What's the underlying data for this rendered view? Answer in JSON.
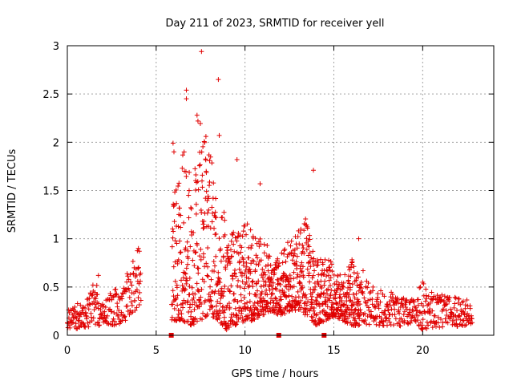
{
  "chart_data": {
    "type": "scatter",
    "title": "Day 211 of 2023, SRMTID for receiver yell",
    "xlabel": "GPS time / hours",
    "ylabel": "SRMTID / TECUs",
    "xlim": [
      0,
      24.0
    ],
    "ylim": [
      0,
      3
    ],
    "xticks": [
      0,
      5,
      10,
      15,
      20
    ],
    "xtick_labels": [
      "0",
      "5",
      "10",
      "15",
      "20"
    ],
    "yticks": [
      0,
      0.5,
      1,
      1.5,
      2,
      2.5,
      3
    ],
    "ytick_labels": [
      "0",
      "0.5",
      "1",
      "1.5",
      "2",
      "2.5",
      "3"
    ],
    "grid": true,
    "marker": "plus",
    "color": "#e00000",
    "envelope": {
      "description": "per-time-window min/max of the plotted SRMTID values",
      "x": [
        0.0,
        0.5,
        1.0,
        1.5,
        2.0,
        2.5,
        3.0,
        3.5,
        4.0,
        6.0,
        6.5,
        7.0,
        7.5,
        8.0,
        8.5,
        9.0,
        9.5,
        10.0,
        10.5,
        11.0,
        11.5,
        12.0,
        12.5,
        13.0,
        13.5,
        14.0,
        14.5,
        15.0,
        15.5,
        16.0,
        16.5,
        17.0,
        17.5,
        18.0,
        18.5,
        19.0,
        19.5,
        20.0,
        20.5,
        21.0,
        21.5,
        22.0,
        22.5,
        22.8
      ],
      "y_min": [
        0.08,
        0.06,
        0.08,
        0.1,
        0.1,
        0.1,
        0.12,
        0.18,
        0.3,
        0.15,
        0.15,
        0.1,
        0.15,
        0.2,
        0.15,
        0.05,
        0.1,
        0.15,
        0.15,
        0.2,
        0.25,
        0.2,
        0.25,
        0.25,
        0.2,
        0.1,
        0.15,
        0.2,
        0.15,
        0.1,
        0.1,
        0.1,
        0.1,
        0.1,
        0.1,
        0.08,
        0.1,
        0.05,
        0.08,
        0.08,
        0.1,
        0.08,
        0.1,
        0.1
      ],
      "y_max": [
        0.3,
        0.35,
        0.3,
        0.62,
        0.35,
        0.45,
        0.55,
        0.7,
        0.9,
        2.0,
        2.55,
        2.3,
        2.95,
        2.65,
        1.5,
        1.8,
        1.3,
        1.58,
        1.35,
        1.35,
        1.0,
        1.05,
        1.28,
        1.35,
        1.7,
        1.05,
        1.0,
        0.95,
        0.75,
        1.02,
        0.8,
        0.55,
        0.5,
        0.48,
        0.42,
        0.38,
        0.4,
        0.55,
        0.45,
        0.42,
        0.45,
        0.4,
        0.38,
        0.35
      ]
    },
    "highlights": [
      {
        "x": 7.55,
        "y": 2.94
      },
      {
        "x": 8.5,
        "y": 2.65
      },
      {
        "x": 6.7,
        "y": 2.54
      },
      {
        "x": 6.7,
        "y": 2.45
      },
      {
        "x": 7.3,
        "y": 2.28
      },
      {
        "x": 7.35,
        "y": 2.22
      },
      {
        "x": 8.55,
        "y": 2.07
      },
      {
        "x": 5.95,
        "y": 1.99
      },
      {
        "x": 6.0,
        "y": 1.9
      },
      {
        "x": 7.8,
        "y": 2.06
      },
      {
        "x": 9.55,
        "y": 1.82
      },
      {
        "x": 13.85,
        "y": 1.71
      },
      {
        "x": 10.85,
        "y": 1.57
      },
      {
        "x": 4.0,
        "y": 0.9
      },
      {
        "x": 4.05,
        "y": 0.87
      },
      {
        "x": 1.75,
        "y": 0.62
      },
      {
        "x": 16.4,
        "y": 1.0
      },
      {
        "x": 20.0,
        "y": 0.55
      }
    ],
    "zero_markers_x": [
      5.85,
      11.9,
      14.45
    ],
    "seed": 211
  }
}
